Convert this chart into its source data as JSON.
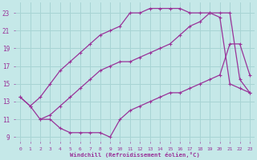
{
  "xlabel": "Windchill (Refroidissement éolien,°C)",
  "bg_color": "#c5e8e8",
  "grid_color": "#a8d4d4",
  "line_color": "#993399",
  "xlim": [
    -0.5,
    23.5
  ],
  "ylim": [
    8.5,
    24.2
  ],
  "xticks": [
    0,
    1,
    2,
    3,
    4,
    5,
    6,
    7,
    8,
    9,
    10,
    11,
    12,
    13,
    14,
    15,
    16,
    17,
    18,
    19,
    20,
    21,
    22,
    23
  ],
  "yticks": [
    9,
    11,
    13,
    15,
    17,
    19,
    21,
    23
  ],
  "curve1_x": [
    0,
    1,
    2,
    3,
    4,
    5,
    6,
    7,
    8,
    9,
    10,
    11,
    12,
    13,
    14,
    15,
    16,
    17,
    18,
    19,
    20,
    21,
    22,
    23
  ],
  "curve1_y": [
    13.5,
    12.5,
    13.5,
    15.0,
    16.5,
    17.5,
    18.5,
    19.5,
    20.5,
    21.0,
    21.5,
    23.0,
    23.0,
    23.5,
    23.5,
    23.5,
    23.5,
    23.0,
    23.0,
    23.0,
    22.5,
    15.0,
    14.5,
    14.0
  ],
  "curve2_x": [
    0,
    1,
    2,
    3,
    4,
    5,
    6,
    7,
    8,
    9,
    10,
    11,
    12,
    13,
    14,
    15,
    16,
    17,
    18,
    19,
    20,
    21,
    22,
    23
  ],
  "curve2_y": [
    13.5,
    12.5,
    11.0,
    11.5,
    12.5,
    13.5,
    14.5,
    15.5,
    16.5,
    17.0,
    17.5,
    17.5,
    18.0,
    18.5,
    19.0,
    19.5,
    20.5,
    21.5,
    22.0,
    23.0,
    23.0,
    23.0,
    15.5,
    14.0
  ],
  "curve3_x": [
    2,
    3,
    4,
    5,
    6,
    7,
    8,
    9,
    10,
    11,
    12,
    13,
    14,
    15,
    16,
    17,
    18,
    19,
    20,
    21,
    22,
    23
  ],
  "curve3_y": [
    11.0,
    11.0,
    10.0,
    9.5,
    9.5,
    9.5,
    9.5,
    9.0,
    11.0,
    12.0,
    12.5,
    13.0,
    13.5,
    14.0,
    14.0,
    14.5,
    15.0,
    15.5,
    16.0,
    19.5,
    19.5,
    16.0
  ]
}
